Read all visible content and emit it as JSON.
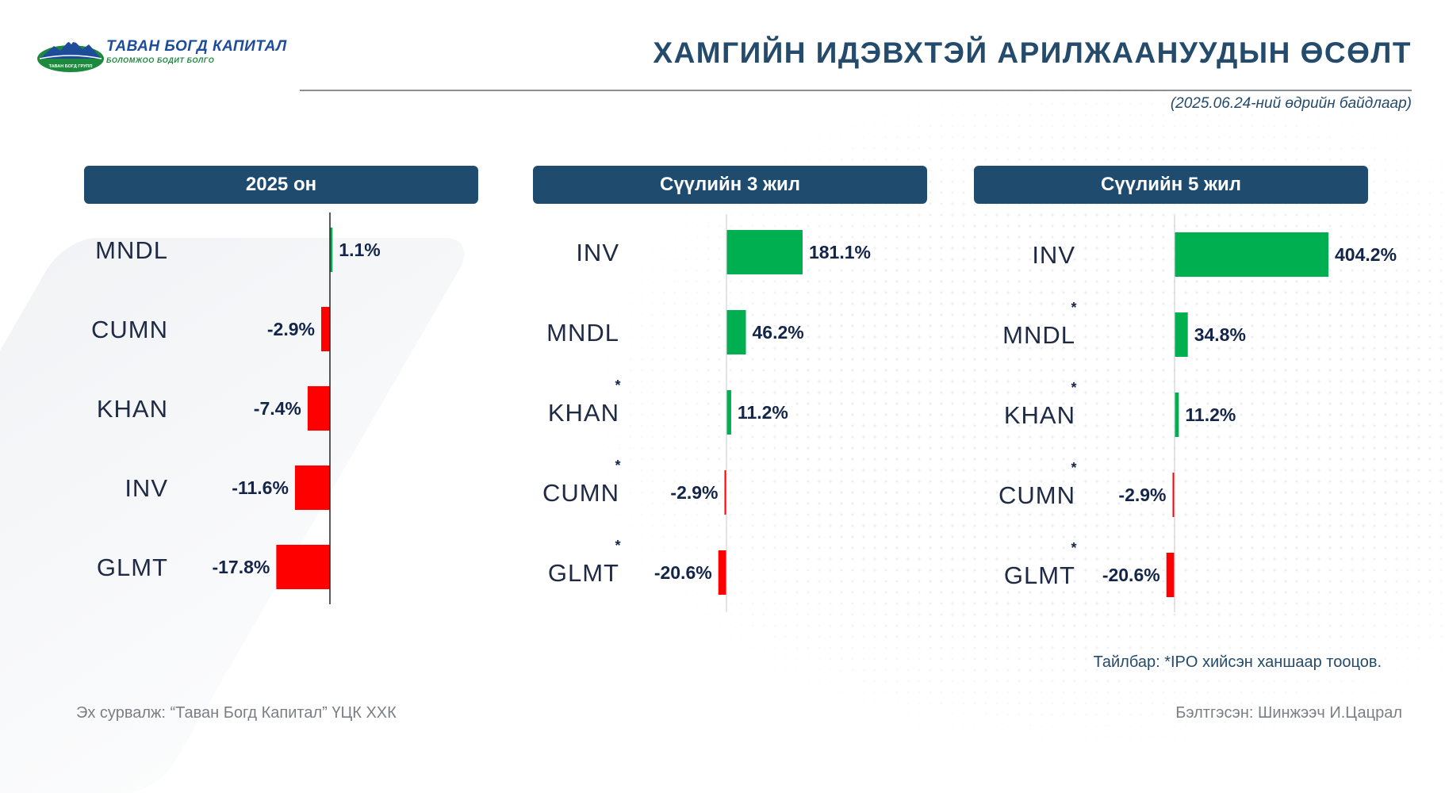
{
  "logo": {
    "name": "ТАВАН БОГД КАПИТАЛ",
    "slogan": "БОЛОМЖОО БОДИТ БОЛГО",
    "mark_text": "ТАВАН БОГД ГРУПП"
  },
  "header": {
    "title": "ХАМГИЙН ИДЭВХТЭЙ АРИЛЖААНУУДЫН ӨСӨЛТ",
    "as_of": "(2025.06.24-ний өдрийн байдлаар)"
  },
  "colors": {
    "positive": "#00b050",
    "negative": "#ff0000",
    "header_bg": "#1f4b6e",
    "label_text": "#1f2a44",
    "value_text": "#14254a"
  },
  "chart_data": [
    {
      "type": "bar",
      "orientation": "horizontal",
      "title": "2025 он",
      "categories": [
        "MNDL",
        "CUMN",
        "KHAN",
        "INV",
        "GLMT"
      ],
      "markers": [
        "",
        "",
        "",
        "",
        ""
      ],
      "values": [
        1.1,
        -2.9,
        -7.4,
        -11.6,
        -17.8
      ],
      "value_labels": [
        "1.1%",
        "-2.9%",
        "-7.4%",
        "-11.6%",
        "-17.8%"
      ],
      "unit": "%"
    },
    {
      "type": "bar",
      "orientation": "horizontal",
      "title": "Сүүлийн 3 жил",
      "categories": [
        "INV",
        "MNDL",
        "KHAN",
        "CUMN",
        "GLMT"
      ],
      "markers": [
        "",
        "",
        "*",
        "*",
        "*"
      ],
      "values": [
        181.1,
        46.2,
        11.2,
        -2.9,
        -20.6
      ],
      "value_labels": [
        "181.1%",
        "46.2%",
        "11.2%",
        "-2.9%",
        "-20.6%"
      ],
      "unit": "%"
    },
    {
      "type": "bar",
      "orientation": "horizontal",
      "title": "Сүүлийн 5 жил",
      "categories": [
        "INV",
        "MNDL",
        "KHAN",
        "CUMN",
        "GLMT"
      ],
      "markers": [
        "",
        "*",
        "*",
        "*",
        "*"
      ],
      "values": [
        404.2,
        34.8,
        11.2,
        -2.9,
        -20.6
      ],
      "value_labels": [
        "404.2%",
        "34.8%",
        "11.2%",
        "-2.9%",
        "-20.6%"
      ],
      "unit": "%"
    }
  ],
  "footer": {
    "note": "Тайлбар: *IPO хийсэн ханшаар тооцов.",
    "source": "Эх сурвалж: “Таван Богд Капитал” ҮЦК ХХК",
    "prepared_by": "Бэлтгэсэн: Шинжээч И.Цацрал"
  }
}
